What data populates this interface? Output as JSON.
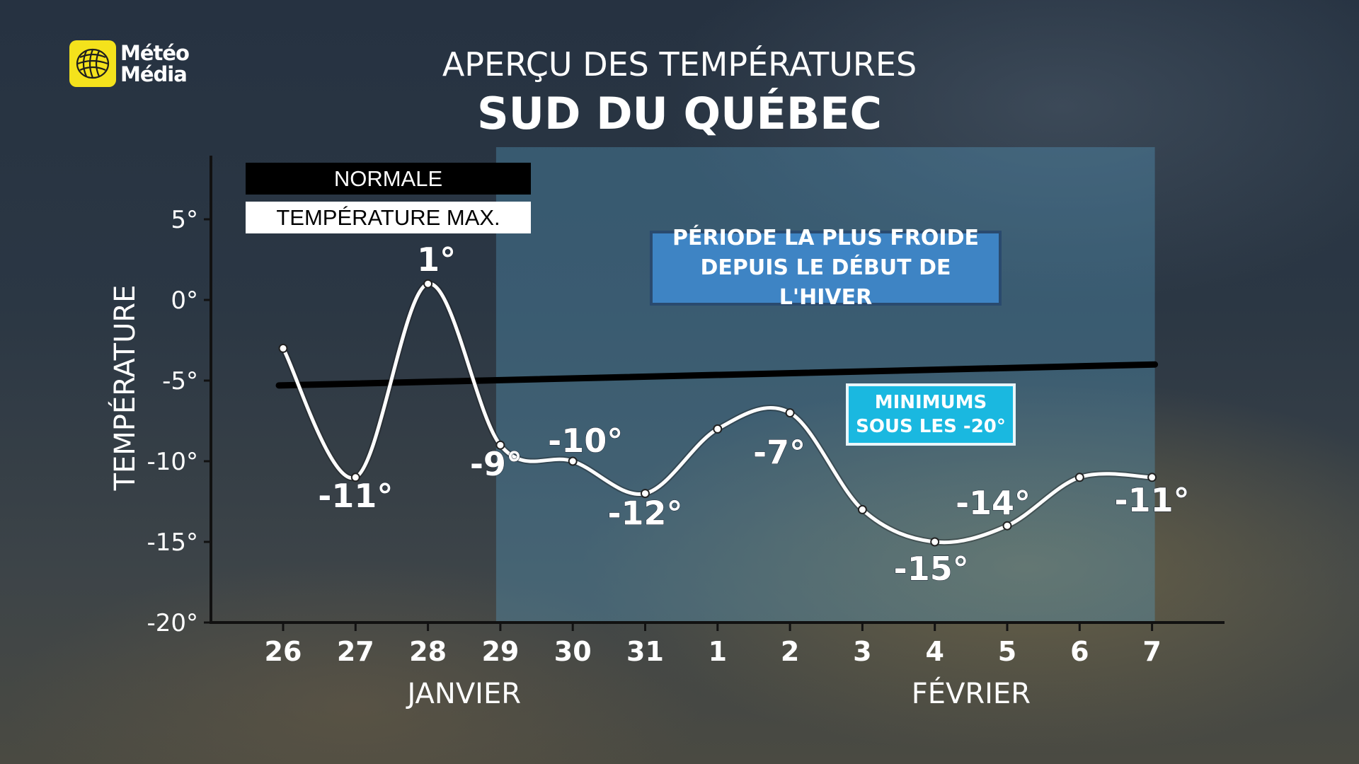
{
  "brand": {
    "line1": "Météo",
    "line2": "Média",
    "logo_color": "#f4e21c"
  },
  "title": {
    "line1": "APERÇU DES TEMPÉRATURES",
    "line2": "SUD DU QUÉBEC"
  },
  "legend": {
    "normal": "NORMALE",
    "max": "TEMPÉRATURE MAX."
  },
  "annotations": {
    "cold_period": [
      "PÉRIODE LA PLUS FROIDE",
      "DEPUIS LE DÉBUT DE L'HIVER"
    ],
    "minimums": [
      "MINIMUMS",
      "SOUS LES -20°"
    ]
  },
  "chart_data": {
    "type": "line",
    "ylabel": "TEMPÉRATURE",
    "ylim": [
      -20,
      5
    ],
    "yticks": [
      5,
      0,
      -5,
      -10,
      -15,
      -20
    ],
    "ytick_labels": [
      "5°",
      "0°",
      "-5°",
      "-10°",
      "-15°",
      "-20°"
    ],
    "x": [
      "26",
      "27",
      "28",
      "29",
      "30",
      "31",
      "1",
      "2",
      "3",
      "4",
      "5",
      "6",
      "7"
    ],
    "months": [
      "JANVIER",
      "FÉVRIER"
    ],
    "series": [
      {
        "name": "TEMPÉRATURE MAX.",
        "color": "#ffffff",
        "values": [
          -3,
          -11,
          1,
          -9,
          -10,
          -12,
          -8,
          -7,
          -13,
          -15,
          -14,
          -11,
          -11
        ],
        "labels": [
          "",
          "-11°",
          "1°",
          "-9°",
          "-10°",
          "-12°",
          "",
          "-7°",
          "",
          "-15°",
          "-14°",
          "",
          "-11°"
        ]
      },
      {
        "name": "NORMALE",
        "color": "#000000",
        "start": -5.3,
        "end": -4
      }
    ],
    "highlight": {
      "from": "29",
      "to": "7",
      "color": "#5aa7cf"
    }
  }
}
